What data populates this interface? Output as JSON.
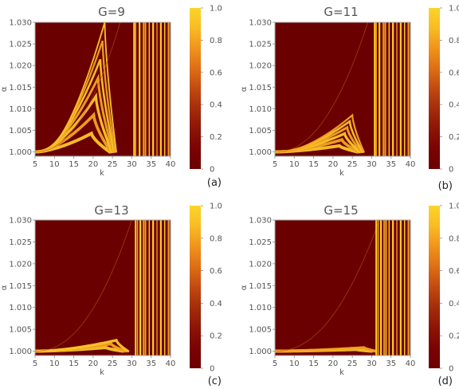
{
  "colors": {
    "colormap": [
      "#6b0000",
      "#7a0303",
      "#8c1506",
      "#a42d0b",
      "#c24a11",
      "#de6e16",
      "#f0941c",
      "#f8bb24",
      "#fbd52a"
    ],
    "background": "#6b0000",
    "frame": "#aaaaaa",
    "text": "#555555"
  },
  "chart_data": [
    {
      "type": "heatmap",
      "title": "G=9",
      "xlabel": "k",
      "ylabel": "α",
      "xlim": [
        5,
        40
      ],
      "ylim": [
        0.999,
        1.03
      ],
      "xticks": [
        5,
        10,
        15,
        20,
        25,
        30,
        35,
        40
      ],
      "yticks": [
        1.0,
        1.005,
        1.01,
        1.015,
        1.02,
        1.025,
        1.03
      ],
      "ytick_labels": [
        "1.000",
        "1.005",
        "1.010",
        "1.015",
        "1.020",
        "1.025",
        "1.030"
      ],
      "colorbar": {
        "range": [
          0,
          1
        ],
        "ticks": [
          0,
          0.2,
          0.4,
          0.6,
          0.8,
          1.0
        ],
        "tick_labels": [
          "0",
          "0.2",
          "0.4",
          "0.6",
          "0.8",
          "1.0"
        ]
      },
      "panel_label": "(a)",
      "tongue_tip_alpha": 1.03,
      "tongue_tip_k": 23,
      "bands": 7,
      "resonance_line_k": [
        30.6,
        31.0,
        32.0,
        33.0,
        33.5,
        34.5,
        35.5,
        36.5,
        37.5,
        38.5,
        39.5
      ]
    },
    {
      "type": "heatmap",
      "title": "G=11",
      "xlabel": "k",
      "ylabel": "α",
      "xlim": [
        5,
        40
      ],
      "ylim": [
        0.999,
        1.03
      ],
      "xticks": [
        5,
        10,
        15,
        20,
        25,
        30,
        35,
        40
      ],
      "yticks": [
        1.0,
        1.005,
        1.01,
        1.015,
        1.02,
        1.025,
        1.03
      ],
      "ytick_labels": [
        "1.000",
        "1.005",
        "1.010",
        "1.015",
        "1.020",
        "1.025",
        "1.030"
      ],
      "colorbar": {
        "range": [
          0,
          1
        ],
        "ticks": [
          0,
          0.2,
          0.4,
          0.6,
          0.8,
          1.0
        ],
        "tick_labels": [
          "0",
          "0.2",
          "0.4",
          "0.6",
          "0.8",
          "1.0"
        ]
      },
      "panel_label": "(b)",
      "tongue_tip_alpha": 1.0085,
      "tongue_tip_k": 25,
      "bands": 6,
      "resonance_line_k": [
        30.8,
        31.2,
        32.0,
        33.0,
        33.5,
        34.5,
        35.5,
        36.5,
        37.5,
        38.5,
        39.5
      ]
    },
    {
      "type": "heatmap",
      "title": "G=13",
      "xlabel": "k",
      "ylabel": "α",
      "xlim": [
        5,
        40
      ],
      "ylim": [
        0.999,
        1.03
      ],
      "xticks": [
        5,
        10,
        15,
        20,
        25,
        30,
        35,
        40
      ],
      "yticks": [
        1.0,
        1.005,
        1.01,
        1.015,
        1.02,
        1.025,
        1.03
      ],
      "ytick_labels": [
        "1.000",
        "1.005",
        "1.010",
        "1.015",
        "1.020",
        "1.025",
        "1.030"
      ],
      "colorbar": {
        "range": [
          0,
          1
        ],
        "ticks": [
          0,
          0.2,
          0.4,
          0.6,
          0.8,
          1.0
        ],
        "tick_labels": [
          "0",
          "0.2",
          "0.4",
          "0.6",
          "0.8",
          "1.0"
        ]
      },
      "panel_label": "(c)",
      "tongue_tip_alpha": 1.0025,
      "tongue_tip_k": 26,
      "bands": 3,
      "resonance_line_k": [
        31.0,
        31.5,
        32.2,
        33.0,
        33.5,
        34.5,
        35.5,
        36.5,
        37.5,
        38.5,
        39.5
      ]
    },
    {
      "type": "heatmap",
      "title": "G=15",
      "xlabel": "k",
      "ylabel": "α",
      "xlim": [
        5,
        40
      ],
      "ylim": [
        0.999,
        1.03
      ],
      "xticks": [
        5,
        10,
        15,
        20,
        25,
        30,
        35,
        40
      ],
      "yticks": [
        1.0,
        1.005,
        1.01,
        1.015,
        1.02,
        1.025,
        1.03
      ],
      "ytick_labels": [
        "1.000",
        "1.005",
        "1.010",
        "1.015",
        "1.020",
        "1.025",
        "1.030"
      ],
      "colorbar": {
        "range": [
          0,
          1
        ],
        "ticks": [
          0,
          0.2,
          0.4,
          0.6,
          0.8,
          1.0
        ],
        "tick_labels": [
          "0",
          "0.2",
          "0.4",
          "0.6",
          "0.8",
          "1.0"
        ]
      },
      "panel_label": "(d)",
      "tongue_tip_alpha": 1.0008,
      "tongue_tip_k": 28,
      "bands": 2,
      "resonance_line_k": [
        31.2,
        31.7,
        32.4,
        33.2,
        33.7,
        34.5,
        35.5,
        36.5,
        37.5,
        38.5,
        39.5
      ]
    }
  ]
}
